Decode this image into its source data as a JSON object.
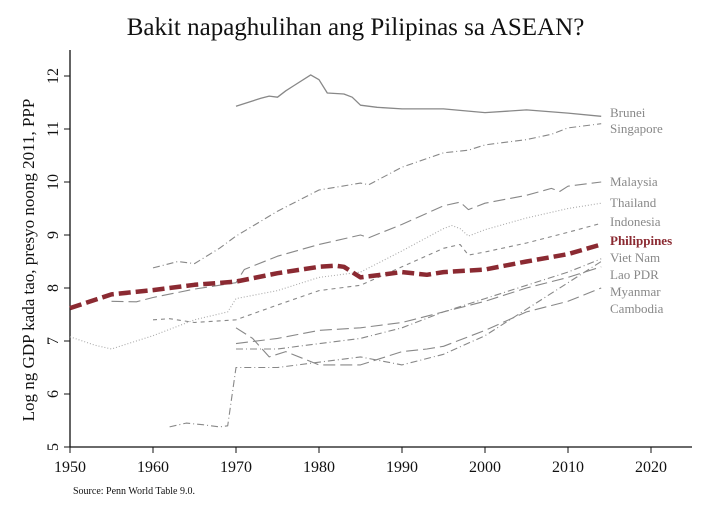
{
  "title": "Bakit napaghulihan ang Pilipinas sa ASEAN?",
  "source": "Source: Penn World Table 9.0.",
  "chart_data": {
    "type": "line",
    "title": "Bakit napaghulihan ang Pilipinas sa ASEAN?",
    "xlabel": "",
    "ylabel": "Log ng GDP kada tao, presyo noong 2011, PPP",
    "xlim": [
      1950,
      2025
    ],
    "ylim": [
      5,
      12.4
    ],
    "xticks": [
      1950,
      1960,
      1970,
      1980,
      1990,
      2000,
      2010,
      2020
    ],
    "yticks": [
      5,
      6,
      7,
      8,
      9,
      10,
      11,
      12
    ],
    "grid": false,
    "legend_position": "direct labels at right end of lines",
    "highlight_color": "#8b2a32",
    "series": [
      {
        "name": "Brunei",
        "style": "solid",
        "color": "#888888",
        "x": [
          1970,
          1973,
          1974,
          1975,
          1976,
          1977,
          1979,
          1980,
          1981,
          1983,
          1984,
          1985,
          1987,
          1990,
          1995,
          2000,
          2005,
          2010,
          2014
        ],
        "values": [
          11.43,
          11.58,
          11.62,
          11.6,
          11.72,
          11.82,
          12.02,
          11.93,
          11.68,
          11.66,
          11.6,
          11.45,
          11.41,
          11.38,
          11.38,
          11.31,
          11.36,
          11.3,
          11.24
        ]
      },
      {
        "name": "Singapore",
        "style": "dash-dot",
        "color": "#888888",
        "x": [
          1960,
          1963,
          1965,
          1968,
          1970,
          1975,
          1980,
          1985,
          1986,
          1990,
          1995,
          1998,
          2000,
          2005,
          2008,
          2010,
          2014
        ],
        "values": [
          8.38,
          8.5,
          8.46,
          8.75,
          8.98,
          9.45,
          9.85,
          9.98,
          9.95,
          10.28,
          10.55,
          10.6,
          10.7,
          10.8,
          10.9,
          11.02,
          11.1
        ]
      },
      {
        "name": "Malaysia",
        "style": "long-dash",
        "color": "#888888",
        "x": [
          1955,
          1958,
          1960,
          1965,
          1970,
          1971,
          1975,
          1980,
          1985,
          1986,
          1990,
          1995,
          1997,
          1998,
          2000,
          2005,
          2008,
          2009,
          2010,
          2014
        ],
        "values": [
          7.75,
          7.74,
          7.82,
          7.98,
          8.1,
          8.35,
          8.6,
          8.82,
          9.0,
          8.95,
          9.2,
          9.55,
          9.62,
          9.48,
          9.6,
          9.75,
          9.88,
          9.82,
          9.92,
          10.0
        ]
      },
      {
        "name": "Thailand",
        "style": "dotted",
        "color": "#aaaaaa",
        "x": [
          1950,
          1953,
          1955,
          1957,
          1960,
          1965,
          1969,
          1970,
          1975,
          1980,
          1985,
          1990,
          1995,
          1996,
          1997,
          1998,
          2000,
          2005,
          2010,
          2014
        ],
        "values": [
          7.08,
          6.92,
          6.85,
          6.95,
          7.1,
          7.4,
          7.55,
          7.8,
          7.95,
          8.2,
          8.3,
          8.7,
          9.12,
          9.18,
          9.12,
          8.98,
          9.1,
          9.32,
          9.5,
          9.6
        ]
      },
      {
        "name": "Indonesia",
        "style": "short-dash",
        "color": "#888888",
        "x": [
          1960,
          1962,
          1965,
          1970,
          1975,
          1980,
          1985,
          1990,
          1995,
          1997,
          1998,
          2000,
          2005,
          2010,
          2014
        ],
        "values": [
          7.4,
          7.42,
          7.35,
          7.4,
          7.68,
          7.95,
          8.05,
          8.4,
          8.75,
          8.82,
          8.62,
          8.68,
          8.85,
          9.05,
          9.22
        ]
      },
      {
        "name": "Philippines",
        "style": "thick-dash",
        "color": "#8b2a32",
        "x": [
          1950,
          1955,
          1960,
          1965,
          1970,
          1975,
          1980,
          1982,
          1983,
          1985,
          1990,
          1993,
          1995,
          2000,
          2005,
          2010,
          2014
        ],
        "values": [
          7.62,
          7.88,
          7.96,
          8.06,
          8.12,
          8.28,
          8.4,
          8.42,
          8.4,
          8.2,
          8.3,
          8.25,
          8.3,
          8.35,
          8.5,
          8.64,
          8.82
        ]
      },
      {
        "name": "Viet Nam",
        "style": "dash-dot",
        "color": "#888888",
        "x": [
          1970,
          1975,
          1980,
          1985,
          1990,
          1995,
          2000,
          2005,
          2010,
          2014
        ],
        "values": [
          6.85,
          6.85,
          6.95,
          7.05,
          7.25,
          7.55,
          7.8,
          8.05,
          8.3,
          8.55
        ]
      },
      {
        "name": "Lao PDR",
        "style": "long-dash",
        "color": "#888888",
        "x": [
          1970,
          1975,
          1980,
          1985,
          1990,
          1995,
          2000,
          2005,
          2010,
          2014
        ],
        "values": [
          6.95,
          7.05,
          7.2,
          7.25,
          7.35,
          7.55,
          7.75,
          8.0,
          8.2,
          8.4
        ]
      },
      {
        "name": "Myanmar",
        "style": "dash-dot",
        "color": "#888888",
        "x": [
          1962,
          1964,
          1966,
          1968,
          1969,
          1970,
          1975,
          1980,
          1985,
          1990,
          1995,
          2000,
          2005,
          2010,
          2014
        ],
        "values": [
          5.38,
          5.45,
          5.42,
          5.38,
          5.4,
          6.5,
          6.5,
          6.6,
          6.7,
          6.55,
          6.75,
          7.1,
          7.6,
          8.1,
          8.5
        ]
      },
      {
        "name": "Cambodia",
        "style": "long-dash",
        "color": "#888888",
        "x": [
          1970,
          1972,
          1974,
          1976,
          1980,
          1985,
          1990,
          1993,
          1995,
          2000,
          2005,
          2010,
          2014
        ],
        "values": [
          7.25,
          7.05,
          6.7,
          6.8,
          6.55,
          6.55,
          6.8,
          6.85,
          6.9,
          7.2,
          7.55,
          7.75,
          8.0
        ]
      }
    ]
  },
  "labels": {
    "Brunei": "Brunei",
    "Singapore": "Singapore",
    "Malaysia": "Malaysia",
    "Thailand": "Thailand",
    "Indonesia": "Indonesia",
    "Philippines": "Philippines",
    "Viet Nam": "Viet Nam",
    "Lao PDR": "Lao PDR",
    "Myanmar": "Myanmar",
    "Cambodia": "Cambodia"
  }
}
